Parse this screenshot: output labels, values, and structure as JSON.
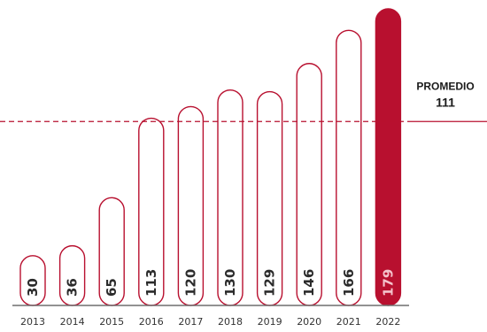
{
  "chart_data": {
    "type": "bar",
    "categories": [
      "2013",
      "2014",
      "2015",
      "2016",
      "2017",
      "2018",
      "2019",
      "2020",
      "2021",
      "2022"
    ],
    "values": [
      30,
      36,
      65,
      113,
      120,
      130,
      129,
      146,
      166,
      179
    ],
    "highlight_category": "2022",
    "average": {
      "title": "PROMEDIO",
      "value": 111
    },
    "ylim": [
      0,
      179
    ],
    "grid": false,
    "colors": {
      "accent": "#b8102f",
      "bar_fill": "#ffffff",
      "highlight_text": "#f4c3cc",
      "text": "#2b2b2b",
      "baseline": "#6e6e6e"
    }
  }
}
